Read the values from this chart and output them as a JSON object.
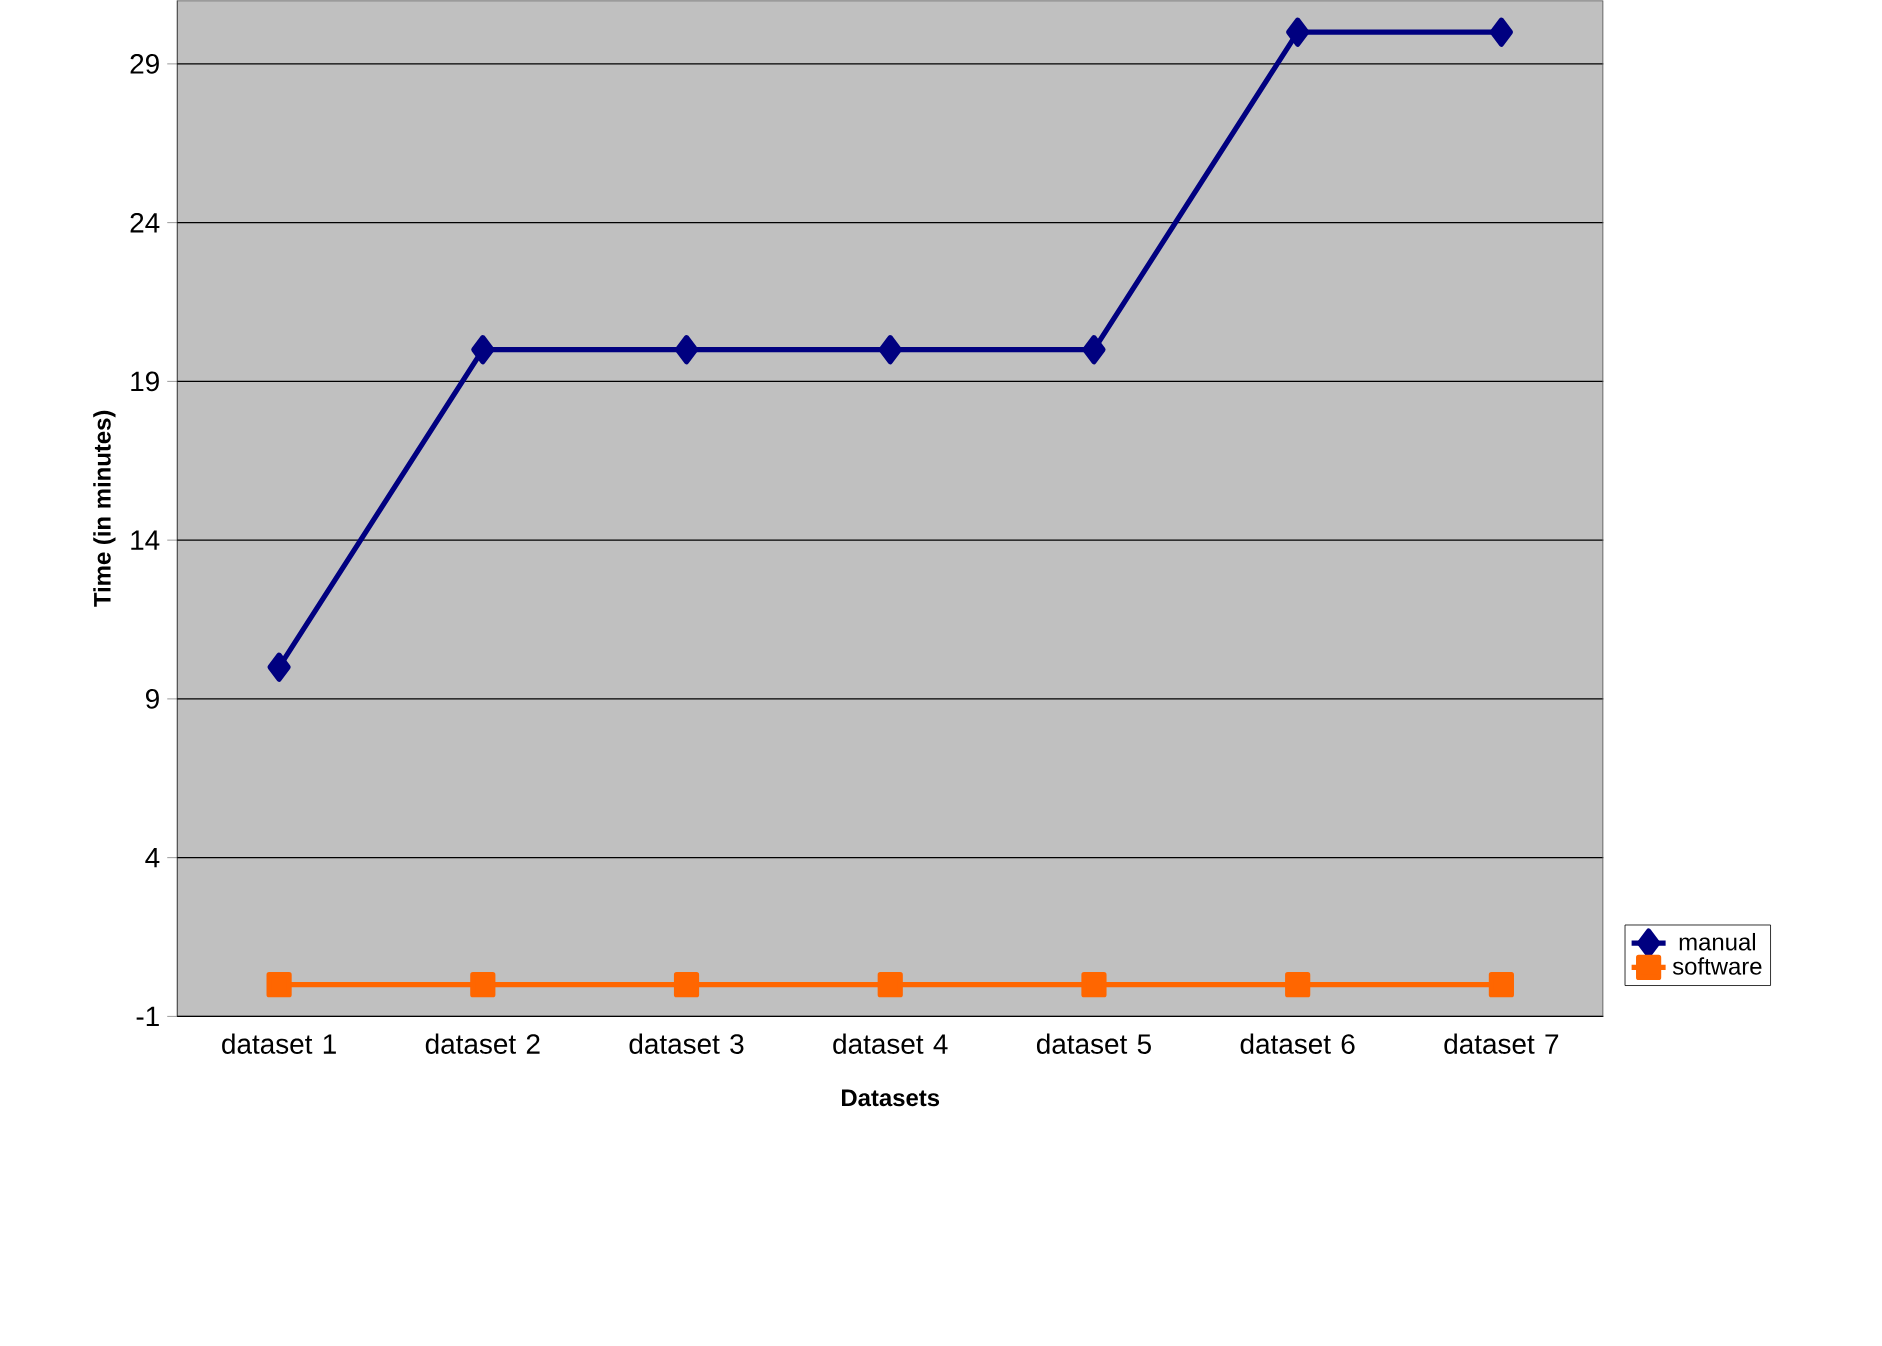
{
  "chart_data": {
    "type": "line",
    "xlabel": "Datasets",
    "ylabel": "Time (in minutes)",
    "categories": [
      "dataset 1",
      "dataset 2",
      "dataset 3",
      "dataset 4",
      "dataset 5",
      "dataset 6",
      "dataset 7"
    ],
    "series": [
      {
        "name": "manual",
        "color": "#000080",
        "marker": "diamond",
        "values": [
          10,
          20,
          20,
          20,
          20,
          30,
          30
        ]
      },
      {
        "name": "software",
        "color": "#ff6600",
        "marker": "square",
        "values": [
          0,
          0,
          0,
          0,
          0,
          0,
          0
        ]
      }
    ],
    "ylim": [
      -1,
      31
    ],
    "yticks": [
      -1,
      4,
      9,
      14,
      19,
      24,
      29
    ],
    "grid": "y",
    "legend": "right",
    "line_style": "solid"
  }
}
